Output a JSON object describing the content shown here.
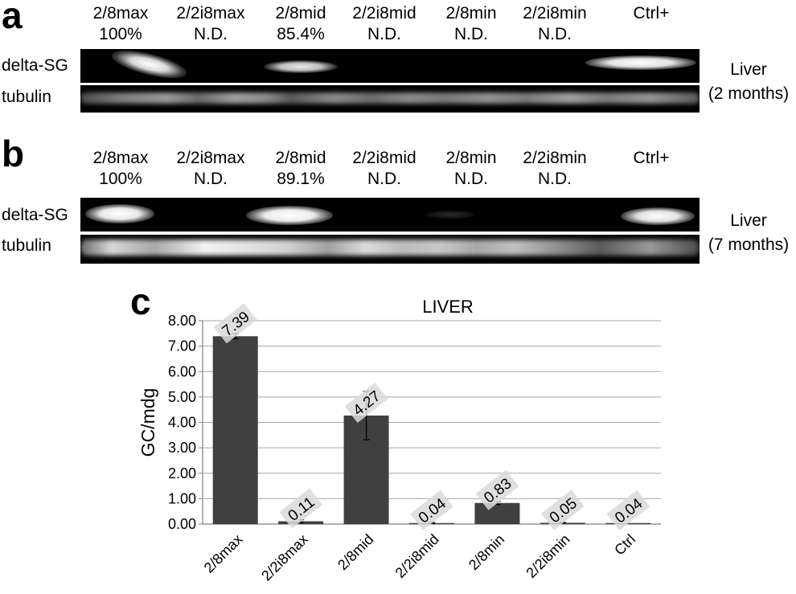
{
  "panel_a": {
    "letter": "a",
    "lanes": [
      {
        "name": "2/8max",
        "value": "100%"
      },
      {
        "name": "2/2i8max",
        "value": "N.D."
      },
      {
        "name": "2/8mid",
        "value": "85.4%"
      },
      {
        "name": "2/2i8mid",
        "value": "N.D."
      },
      {
        "name": "2/8min",
        "value": "N.D."
      },
      {
        "name": "2/2i8min",
        "value": "N.D."
      },
      {
        "name": "Ctrl+",
        "value": ""
      }
    ],
    "row_labels": [
      "delta-SG",
      "tubulin"
    ],
    "side_label_1": "Liver",
    "side_label_2": "(2 months)"
  },
  "panel_b": {
    "letter": "b",
    "lanes": [
      {
        "name": "2/8max",
        "value": "100%"
      },
      {
        "name": "2/2i8max",
        "value": "N.D."
      },
      {
        "name": "2/8mid",
        "value": "89.1%"
      },
      {
        "name": "2/2i8mid",
        "value": "N.D."
      },
      {
        "name": "2/8min",
        "value": "N.D."
      },
      {
        "name": "2/2i8min",
        "value": "N.D."
      },
      {
        "name": "Ctrl+",
        "value": ""
      }
    ],
    "row_labels": [
      "delta-SG",
      "tubulin"
    ],
    "side_label_1": "Liver",
    "side_label_2": "(7 months)"
  },
  "panel_c": {
    "letter": "c"
  },
  "chart_data": {
    "type": "bar",
    "title": "LIVER",
    "xlabel": "",
    "ylabel": "GC/mdg",
    "categories": [
      "2/8max",
      "2/2i8max",
      "2/8mid",
      "2/2i8mid",
      "2/8min",
      "2/2i8min",
      "Ctrl"
    ],
    "values": [
      7.39,
      0.11,
      4.27,
      0.04,
      0.83,
      0.05,
      0.04
    ],
    "value_labels": [
      "7.39",
      "0.11",
      "4.27",
      "0.04",
      "0.83",
      "0.05",
      "0.04"
    ],
    "errors": [
      0.1,
      0.06,
      0.95,
      0.02,
      0.06,
      0.01,
      0.0
    ],
    "ylim": [
      0,
      8
    ],
    "yticks": [
      "0.00",
      "1.00",
      "2.00",
      "3.00",
      "4.00",
      "5.00",
      "6.00",
      "7.00",
      "8.00"
    ],
    "grid": true,
    "bar_color": "#404040",
    "label_bg": "#d9d9d9"
  }
}
